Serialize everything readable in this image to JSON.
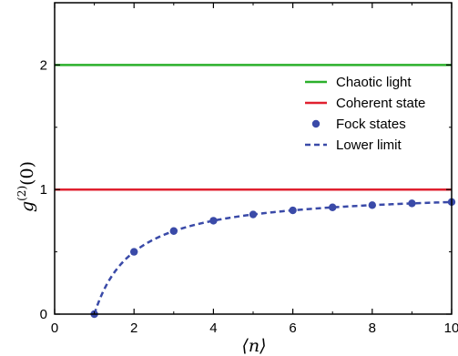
{
  "chart_data": {
    "type": "line",
    "xlabel": "⟨n⟩",
    "ylabel": "g(2)(0)",
    "xlim": [
      0,
      10
    ],
    "ylim": [
      0,
      2.5
    ],
    "x_ticks": [
      0,
      2,
      4,
      6,
      8,
      10
    ],
    "x_tick_labels": [
      "0",
      "2",
      "4",
      "6",
      "8",
      "10"
    ],
    "y_ticks": [
      0,
      1,
      2
    ],
    "y_tick_labels": [
      "0",
      "1",
      "2"
    ],
    "grid": false,
    "legend_position": "right",
    "series": [
      {
        "name": "Chaotic light",
        "style": "line",
        "color": "#2bb02b",
        "x": [
          0,
          10
        ],
        "y": [
          2,
          2
        ]
      },
      {
        "name": "Coherent state",
        "style": "line",
        "color": "#e0202f",
        "x": [
          0,
          10
        ],
        "y": [
          1,
          1
        ]
      },
      {
        "name": "Fock states",
        "style": "markers",
        "color": "#3a4aa8",
        "x": [
          1,
          2,
          3,
          4,
          5,
          6,
          7,
          8,
          9,
          10
        ],
        "y": [
          0,
          0.5,
          0.667,
          0.75,
          0.8,
          0.833,
          0.857,
          0.875,
          0.889,
          0.9
        ]
      },
      {
        "name": "Lower limit",
        "style": "dashed",
        "color": "#3a4aa8",
        "function": "1 - 1/x",
        "x_range": [
          1,
          10
        ]
      }
    ]
  }
}
